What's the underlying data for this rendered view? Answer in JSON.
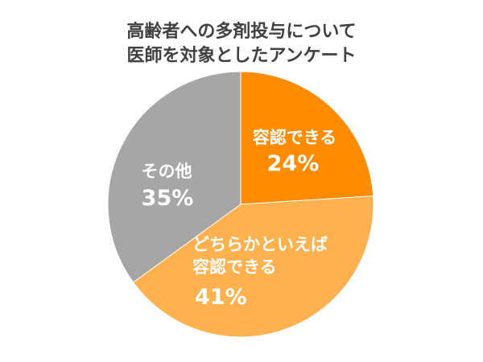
{
  "chart_data": {
    "type": "pie",
    "title_lines": [
      "高齢者への多剤投与について",
      "医師を対象としたアンケート"
    ],
    "slices": [
      {
        "label_lines": [
          "容認できる"
        ],
        "value": 24,
        "value_label": "24%",
        "color": "#ff8c00"
      },
      {
        "label_lines": [
          "どちらかといえば",
          "容認できる"
        ],
        "value": 41,
        "value_label": "41%",
        "color": "#ffb04f"
      },
      {
        "label_lines": [
          "その他"
        ],
        "value": 35,
        "value_label": "35%",
        "color": "#a6a6a6"
      }
    ]
  }
}
